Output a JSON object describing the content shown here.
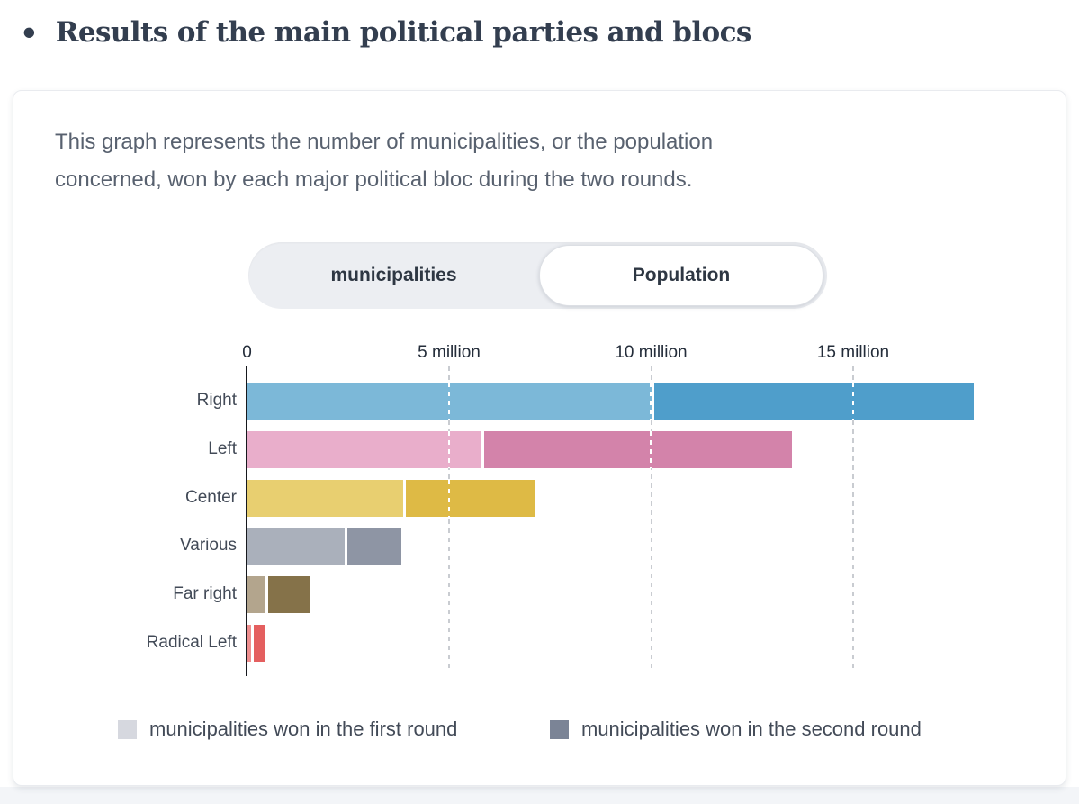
{
  "header": {
    "bullet": "•",
    "title": "Results of the main political parties and blocs"
  },
  "card": {
    "description_lines": [
      "This graph represents the number of municipalities, or the population",
      "concerned, won by each major political bloc during the two rounds."
    ],
    "toggle": {
      "options": [
        {
          "label": "municipalities",
          "selected": false
        },
        {
          "label": "Population",
          "selected": true
        }
      ]
    },
    "legend": [
      {
        "label": "municipalities won in the first round",
        "swatch_color": "#d6d8df"
      },
      {
        "label": "municipalities won in the second round",
        "swatch_color": "#7b8496"
      }
    ]
  },
  "chart_data": {
    "type": "bar",
    "orientation": "horizontal",
    "stacked": true,
    "view": "Population",
    "categories": [
      "Right",
      "Left",
      "Center",
      "Various",
      "Far right",
      "Radical Left"
    ],
    "series": [
      {
        "name": "won in the first round",
        "values": [
          10.0,
          5.8,
          3.85,
          2.4,
          0.45,
          0.1
        ]
      },
      {
        "name": "won in the second round",
        "values": [
          7.9,
          7.6,
          3.2,
          1.35,
          1.05,
          0.27
        ]
      }
    ],
    "unit": "million",
    "x_ticks": [
      {
        "value": 0,
        "label": "0"
      },
      {
        "value": 5,
        "label": "5 million"
      },
      {
        "value": 10,
        "label": "10 million"
      },
      {
        "value": 15,
        "label": "15 million"
      }
    ],
    "xlim": [
      0,
      18.6
    ],
    "grid": "vertical-dashed",
    "colors": {
      "Right": [
        "#7cb8d8",
        "#4f9ecb"
      ],
      "Left": [
        "#e9aecb",
        "#d383aa"
      ],
      "Center": [
        "#e8cf70",
        "#deba45"
      ],
      "Various": [
        "#aab0bb",
        "#8e95a4"
      ],
      "Far right": [
        "#b3a58d",
        "#857249"
      ],
      "Radical Left": [
        "#ef8f8f",
        "#e45f5f"
      ]
    },
    "axis_color": "#16181d",
    "gridline_color": "#c9ccd1"
  }
}
